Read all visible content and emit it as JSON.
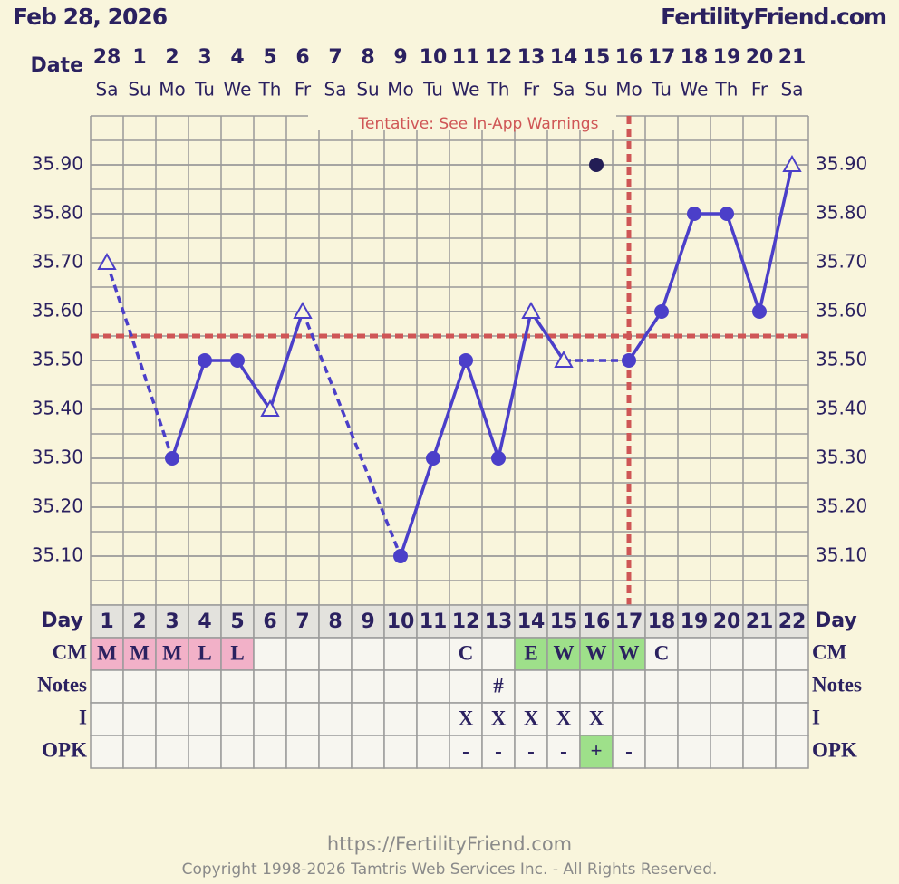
{
  "header": {
    "date": "Feb 28, 2026",
    "site": "FertilityFriend.com"
  },
  "chart_data": {
    "type": "line",
    "date_label": "Date",
    "dates": [
      "28",
      "1",
      "2",
      "3",
      "4",
      "5",
      "6",
      "7",
      "8",
      "9",
      "10",
      "11",
      "12",
      "13",
      "14",
      "15",
      "16",
      "17",
      "18",
      "19",
      "20",
      "21"
    ],
    "weekdays": [
      "Sa",
      "Su",
      "Mo",
      "Tu",
      "We",
      "Th",
      "Fr",
      "Sa",
      "Su",
      "Mo",
      "Tu",
      "We",
      "Th",
      "Fr",
      "Sa",
      "Su",
      "Mo",
      "Tu",
      "We",
      "Th",
      "Fr",
      "Sa"
    ],
    "annotation": "Tentative: See In-App Warnings",
    "ylim": [
      35.0,
      36.0
    ],
    "yticks": [
      {
        "value": 35.1,
        "label": "35.10"
      },
      {
        "value": 35.2,
        "label": "35.20"
      },
      {
        "value": 35.3,
        "label": "35.30"
      },
      {
        "value": 35.4,
        "label": "35.40"
      },
      {
        "value": 35.5,
        "label": "35.50"
      },
      {
        "value": 35.6,
        "label": "35.60"
      },
      {
        "value": 35.7,
        "label": "35.70"
      },
      {
        "value": 35.8,
        "label": "35.80"
      },
      {
        "value": 35.9,
        "label": "35.90"
      }
    ],
    "values": [
      35.7,
      null,
      35.3,
      35.5,
      35.5,
      35.4,
      35.6,
      null,
      null,
      35.1,
      35.3,
      35.5,
      35.3,
      35.6,
      35.5,
      null,
      35.5,
      35.6,
      35.8,
      35.8,
      35.6,
      35.9
    ],
    "markers": [
      "open",
      null,
      "filled",
      "filled",
      "filled",
      "open",
      "open",
      null,
      null,
      "filled",
      "filled",
      "filled",
      "filled",
      "open",
      "open",
      null,
      "filled",
      "filled",
      "filled",
      "filled",
      "filled",
      "open"
    ],
    "discarded_values": [
      null,
      null,
      null,
      null,
      null,
      null,
      null,
      null,
      null,
      null,
      null,
      null,
      null,
      null,
      null,
      35.9,
      null,
      null,
      null,
      null,
      null,
      null
    ],
    "color": "#4b3fc9",
    "discarded_color": "#231d55",
    "coverline": 35.55,
    "ovulation_day": 17,
    "line_color": "#cf5656"
  },
  "table": {
    "day_label": "Day",
    "days": [
      1,
      2,
      3,
      4,
      5,
      6,
      7,
      8,
      9,
      10,
      11,
      12,
      13,
      14,
      15,
      16,
      17,
      18,
      19,
      20,
      21,
      22
    ],
    "rows": [
      {
        "label": "CM",
        "cells": [
          "M",
          "M",
          "M",
          "L",
          "L",
          null,
          null,
          null,
          null,
          null,
          null,
          "C",
          null,
          "E",
          "W",
          "W",
          "W",
          "C",
          null,
          null,
          null,
          null
        ],
        "fills": [
          "#f2b1c8",
          "#f2b1c8",
          "#f2b1c8",
          "#f2b1c8",
          "#f2b1c8",
          null,
          null,
          null,
          null,
          null,
          null,
          null,
          null,
          "#9ee08a",
          "#9ee08a",
          "#9ee08a",
          "#9ee08a",
          null,
          null,
          null,
          null,
          null
        ]
      },
      {
        "label": "Notes",
        "cells": [
          null,
          null,
          null,
          null,
          null,
          null,
          null,
          null,
          null,
          null,
          null,
          null,
          "#",
          null,
          null,
          null,
          null,
          null,
          null,
          null,
          null,
          null
        ],
        "fills": [
          null,
          null,
          null,
          null,
          null,
          null,
          null,
          null,
          null,
          null,
          null,
          null,
          null,
          null,
          null,
          null,
          null,
          null,
          null,
          null,
          null,
          null
        ]
      },
      {
        "label": "I",
        "cells": [
          null,
          null,
          null,
          null,
          null,
          null,
          null,
          null,
          null,
          null,
          null,
          "X",
          "X",
          "X",
          "X",
          "X",
          null,
          null,
          null,
          null,
          null,
          null
        ],
        "fills": [
          null,
          null,
          null,
          null,
          null,
          null,
          null,
          null,
          null,
          null,
          null,
          null,
          null,
          null,
          null,
          null,
          null,
          null,
          null,
          null,
          null,
          null
        ]
      },
      {
        "label": "OPK",
        "cells": [
          null,
          null,
          null,
          null,
          null,
          null,
          null,
          null,
          null,
          null,
          null,
          "-",
          "-",
          "-",
          "-",
          "+",
          "-",
          null,
          null,
          null,
          null,
          null
        ],
        "fills": [
          null,
          null,
          null,
          null,
          null,
          null,
          null,
          null,
          null,
          null,
          null,
          null,
          null,
          null,
          null,
          "#9ee08a",
          null,
          null,
          null,
          null,
          null,
          null
        ]
      }
    ]
  },
  "footer": {
    "url": "https://FertilityFriend.com",
    "copyright": "Copyright 1998-2026 Tamtris Web Services Inc. - All Rights Reserved."
  }
}
